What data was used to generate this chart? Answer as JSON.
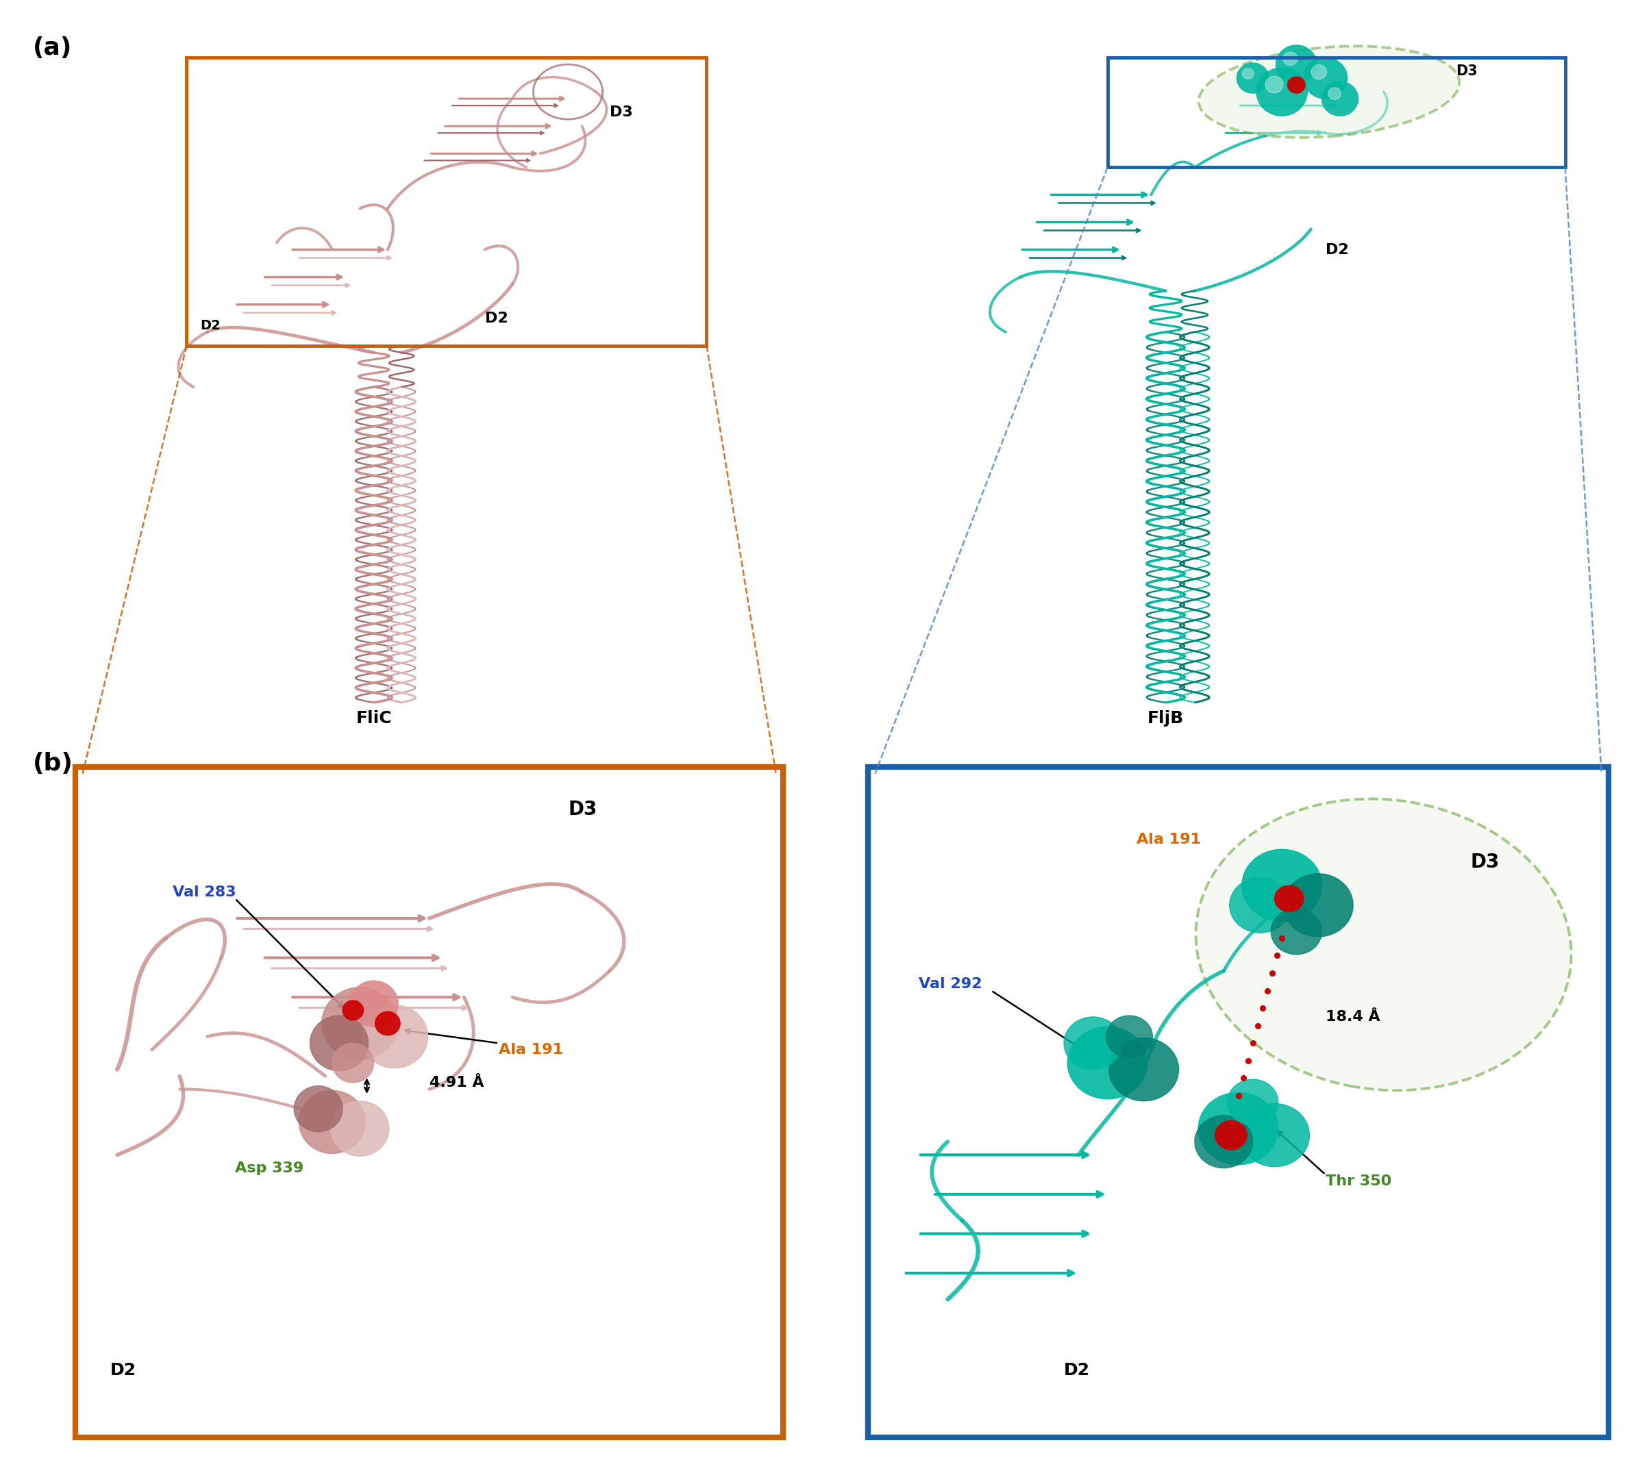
{
  "fig_width": 24.1,
  "fig_height": 21.32,
  "bg_color": "#ffffff",
  "panel_a_label": "(a)",
  "panel_b_label": "(b)",
  "flic_label": "FliC",
  "fljb_label": "FljB",
  "flic_color": "#c9908e",
  "flic_color_light": "#ddb8b6",
  "flic_color_dark": "#a06868",
  "fljb_color": "#00b8a0",
  "fljb_color_dark": "#008070",
  "orange_color": "#c8600a",
  "blue_solid_color": "#1a60a8",
  "blue_dashed_color": "#5588cc",
  "green_dashed_color": "#5a9e2a",
  "light_green_fill": "#eef5e8",
  "d2_label": "D2",
  "d3_label": "D3",
  "val283_label": "Val 283",
  "val283_color": "#2244cc",
  "ala191_flic_label": "Ala 191",
  "ala191_color": "#dd6600",
  "asp339_label": "Asp 339",
  "asp339_color": "#448822",
  "dist_flic": "4.91 Å",
  "val292_label": "Val 292",
  "val292_color": "#2244cc",
  "ala191_fljb_label": "Ala 191",
  "thr350_label": "Thr 350",
  "thr350_color": "#448822",
  "dist_fljb": "18.4 Å",
  "red_color": "#cc0000",
  "black": "#000000"
}
